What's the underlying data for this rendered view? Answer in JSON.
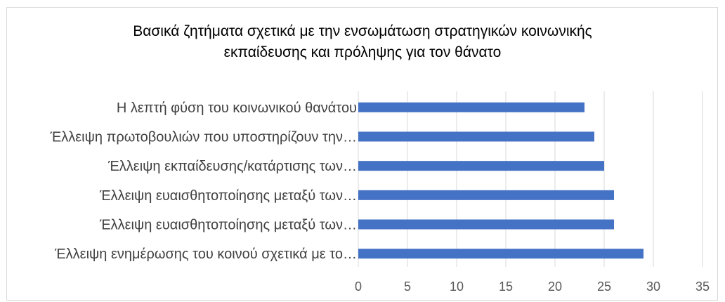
{
  "chart_data": {
    "type": "bar",
    "orientation": "horizontal",
    "title_line1": "Βασικά ζητήματα σχετικά με την ενσωμάτωση στρατηγικών κοινωνικής",
    "title_line2": "εκπαίδευσης και πρόληψης για τον θάνατο",
    "categories": [
      "Η λεπτή φύση του κοινωνικού θανάτου",
      "Έλλειψη πρωτοβουλιών που υποστηρίζουν την…",
      "Έλλειψη εκπαίδευσης/κατάρτισης των…",
      "Έλλειψη ευαισθητοποίησης μεταξύ των…",
      "Έλλειψη ευαισθητοποίησης μεταξύ των…",
      "Έλλειψη ενημέρωσης του κοινού σχετικά με το…"
    ],
    "values": [
      23,
      24,
      25,
      26,
      26,
      29
    ],
    "xlim": [
      0,
      35
    ],
    "xticks": [
      "0",
      "5",
      "10",
      "15",
      "20",
      "25",
      "30",
      "35"
    ],
    "grid": true,
    "bar_color": "#4472c4",
    "grid_color": "#d9d9d9"
  }
}
